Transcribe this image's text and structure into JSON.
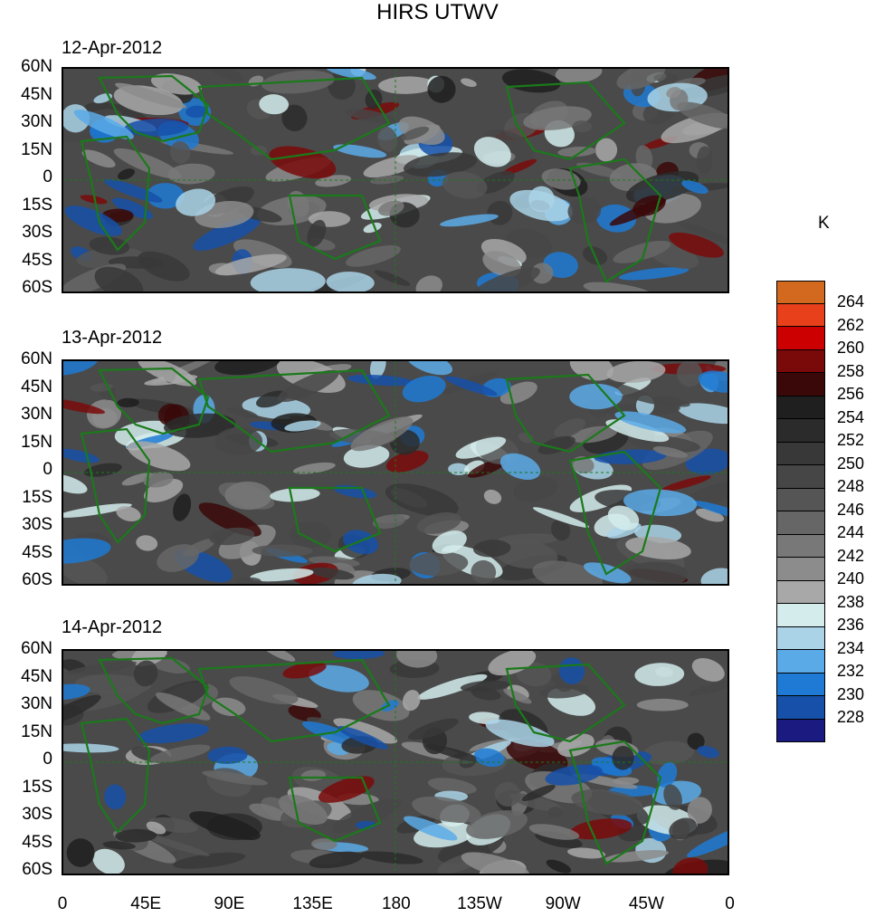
{
  "title": "HIRS UTWV",
  "units": "K",
  "panels": [
    {
      "date": "12-Apr-2012"
    },
    {
      "date": "13-Apr-2012"
    },
    {
      "date": "14-Apr-2012"
    }
  ],
  "lat_labels": [
    "60N",
    "45N",
    "30N",
    "15N",
    "0",
    "15S",
    "30S",
    "45S",
    "60S"
  ],
  "lon_labels": [
    "0",
    "45E",
    "90E",
    "135E",
    "180",
    "135W",
    "90W",
    "45W",
    "0"
  ],
  "colorbar": {
    "labels": [
      "264",
      "262",
      "260",
      "258",
      "256",
      "254",
      "252",
      "250",
      "248",
      "246",
      "244",
      "242",
      "240",
      "238",
      "236",
      "234",
      "232",
      "230",
      "228"
    ],
    "colors": [
      "#d2691e",
      "#e8401a",
      "#cc0000",
      "#7a0a0a",
      "#3a0808",
      "#1f1f1f",
      "#2b2b2b",
      "#383838",
      "#464646",
      "#555555",
      "#666666",
      "#787878",
      "#8c8c8c",
      "#a8a8a8",
      "#d4ecec",
      "#aad3e8",
      "#5aaae8",
      "#1e7ad4",
      "#1650a8",
      "#1a1a80"
    ]
  },
  "coastline_color": "#1a7a1a"
}
